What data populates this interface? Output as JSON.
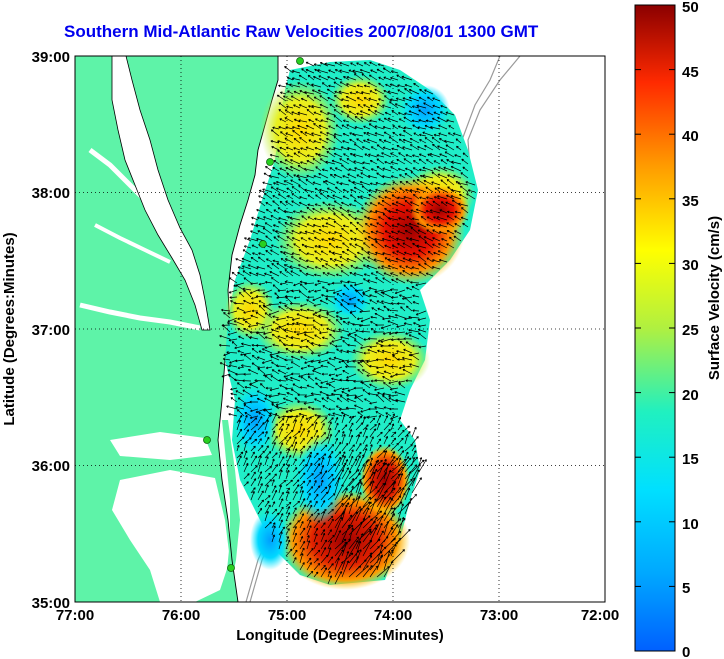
{
  "title": "Southern Mid-Atlantic Raw Velocities 2007/08/01 1300 GMT",
  "x_axis": {
    "label": "Longitude (Degrees:Minutes)",
    "ticks": [
      "77:00",
      "76:00",
      "75:00",
      "74:00",
      "73:00",
      "72:00"
    ]
  },
  "y_axis": {
    "label": "Latitude (Degrees:Minutes)",
    "ticks": [
      "39:00",
      "38:00",
      "37:00",
      "36:00",
      "35:00"
    ]
  },
  "colorbar": {
    "label": "Surface Velocity (cm/s)",
    "min": 0,
    "max": 50,
    "ticks": [
      "50",
      "45",
      "40",
      "35",
      "30",
      "25",
      "20",
      "15",
      "10",
      "5",
      "0"
    ],
    "colormap": "jet"
  },
  "map": {
    "lon_range": [
      -77,
      -72
    ],
    "lat_range": [
      35,
      39
    ],
    "land_color": "#5ef3a8",
    "ocean_color": "#ffffff",
    "grid": "dotted",
    "station_markers": 5
  }
}
